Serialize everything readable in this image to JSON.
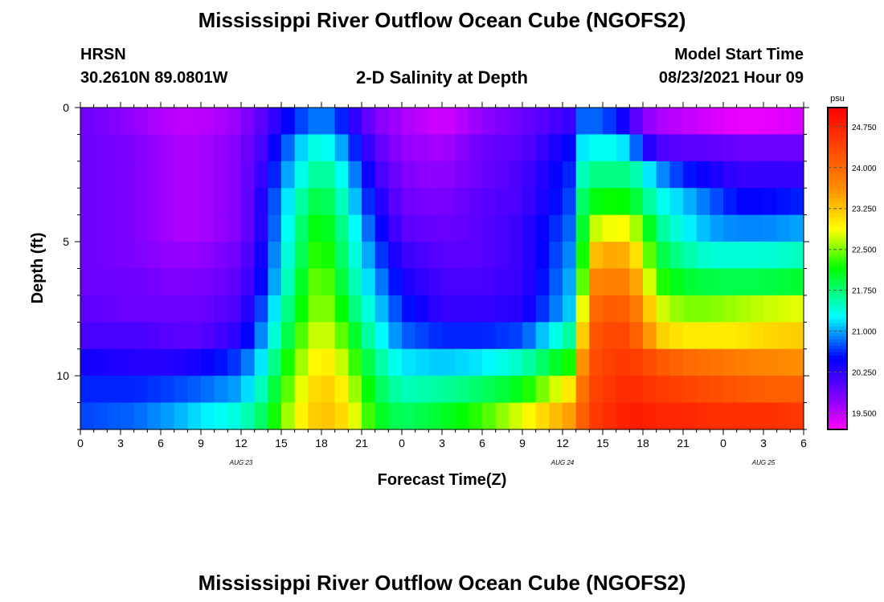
{
  "header": {
    "title": "Mississippi River Outflow Ocean Cube (NGOFS2)",
    "station": "HRSN",
    "coords": "30.2610N  89.0801W",
    "subtitle": "2-D Salinity at Depth",
    "model_label": "Model Start Time",
    "model_time": "08/23/2021 Hour 09"
  },
  "footer": {
    "title": "Mississippi River Outflow Ocean Cube (NGOFS2)"
  },
  "chart_data": {
    "type": "heatmap",
    "title": "2-D Salinity at Depth",
    "xlabel": "Forecast Time(Z)",
    "ylabel": "Depth (ft)",
    "x_ticks": [
      "0",
      "3",
      "6",
      "9",
      "12",
      "15",
      "18",
      "21",
      "0",
      "3",
      "6",
      "9",
      "12",
      "15",
      "18",
      "21",
      "0",
      "3",
      "6"
    ],
    "x_range_hours": [
      0,
      54
    ],
    "date_labels": [
      {
        "text": "AUG 23",
        "hour": 12
      },
      {
        "text": "AUG 24",
        "hour": 36
      },
      {
        "text": "AUG 25",
        "hour": 51
      }
    ],
    "y_ticks": [
      0,
      5,
      10
    ],
    "y_range_ft": [
      0,
      12
    ],
    "depth_levels_ft": [
      0,
      1,
      2,
      3,
      4,
      5,
      6,
      7,
      8,
      9,
      10,
      11
    ],
    "colorbar": {
      "unit": "psu",
      "ticks": [
        "24.750",
        "24.000",
        "23.250",
        "22.500",
        "21.750",
        "21.000",
        "20.250",
        "19.500"
      ],
      "range": [
        19.2,
        25.1
      ]
    },
    "time_keys_hours": [
      0,
      4,
      7,
      9,
      12,
      13.5,
      15.5,
      17,
      18,
      19,
      20,
      22,
      24,
      27,
      30,
      33,
      36.5,
      37.5,
      38.5,
      40,
      41,
      42,
      43,
      45,
      47,
      49,
      51,
      54
    ],
    "salinity_psu": [
      [
        19.9,
        19.7,
        19.5,
        19.5,
        19.7,
        20.0,
        20.5,
        20.8,
        20.9,
        20.8,
        20.4,
        19.8,
        19.6,
        19.4,
        19.7,
        19.9,
        20.2,
        20.8,
        20.8,
        20.6,
        20.2,
        19.8,
        19.6,
        19.5,
        19.4,
        19.3,
        19.3,
        19.4
      ],
      [
        19.9,
        19.8,
        19.6,
        19.6,
        19.8,
        20.1,
        20.8,
        21.3,
        21.4,
        21.2,
        20.8,
        20.0,
        19.7,
        19.6,
        19.9,
        20.0,
        20.5,
        21.2,
        21.3,
        21.3,
        21.1,
        20.5,
        20.1,
        20.0,
        20.0,
        19.9,
        19.9,
        19.9
      ],
      [
        19.9,
        19.8,
        19.6,
        19.6,
        19.8,
        20.2,
        21.0,
        21.5,
        21.7,
        21.5,
        21.1,
        20.2,
        19.8,
        19.7,
        19.9,
        20.1,
        20.6,
        21.5,
        21.7,
        21.7,
        21.7,
        21.4,
        21.0,
        20.6,
        20.4,
        20.2,
        20.2,
        20.2
      ],
      [
        19.9,
        19.8,
        19.6,
        19.6,
        19.8,
        20.3,
        21.2,
        21.8,
        22.0,
        21.7,
        21.3,
        20.4,
        19.9,
        19.8,
        20.0,
        20.1,
        20.7,
        21.8,
        22.1,
        22.2,
        22.1,
        21.8,
        21.4,
        21.1,
        20.8,
        20.5,
        20.5,
        20.6
      ],
      [
        19.9,
        19.8,
        19.6,
        19.6,
        19.8,
        20.3,
        21.3,
        22.0,
        22.2,
        21.9,
        21.5,
        20.6,
        20.0,
        19.9,
        20.0,
        20.2,
        20.8,
        22.0,
        22.7,
        22.9,
        22.8,
        22.4,
        21.7,
        21.3,
        21.0,
        20.9,
        20.9,
        21.0
      ],
      [
        19.9,
        19.8,
        19.7,
        19.7,
        19.9,
        20.4,
        21.4,
        22.1,
        22.4,
        22.0,
        21.6,
        20.8,
        20.2,
        20.0,
        20.0,
        20.2,
        20.9,
        22.2,
        23.3,
        23.5,
        23.3,
        22.8,
        22.0,
        21.6,
        21.4,
        21.4,
        21.4,
        21.5
      ],
      [
        19.9,
        19.9,
        19.8,
        19.8,
        20.0,
        20.5,
        21.5,
        22.3,
        22.5,
        22.2,
        21.7,
        21.0,
        20.4,
        20.1,
        20.1,
        20.2,
        21.0,
        22.4,
        23.7,
        23.8,
        23.7,
        23.2,
        22.3,
        22.0,
        21.9,
        21.9,
        21.9,
        22.0
      ],
      [
        20.0,
        19.9,
        19.9,
        19.9,
        20.1,
        20.7,
        21.7,
        22.4,
        22.6,
        22.4,
        21.9,
        21.2,
        20.6,
        20.2,
        20.2,
        20.3,
        21.1,
        22.8,
        24.0,
        24.2,
        24.0,
        23.6,
        22.8,
        22.5,
        22.5,
        22.6,
        22.7,
        22.8
      ],
      [
        20.1,
        20.1,
        20.0,
        20.0,
        20.3,
        20.9,
        21.9,
        22.6,
        22.8,
        22.6,
        22.2,
        21.4,
        20.8,
        20.6,
        20.6,
        20.7,
        21.6,
        23.2,
        24.2,
        24.4,
        24.3,
        23.9,
        23.2,
        23.0,
        23.0,
        23.0,
        23.1,
        23.2
      ],
      [
        20.4,
        20.3,
        20.3,
        20.4,
        20.7,
        21.2,
        22.2,
        22.8,
        23.0,
        22.9,
        22.5,
        21.7,
        21.2,
        21.1,
        21.2,
        21.5,
        22.2,
        23.6,
        24.3,
        24.5,
        24.5,
        24.4,
        24.2,
        24.0,
        23.9,
        23.8,
        23.7,
        23.6
      ],
      [
        20.6,
        20.6,
        20.7,
        20.8,
        21.0,
        21.5,
        22.4,
        23.0,
        23.2,
        23.1,
        22.8,
        21.9,
        21.5,
        21.6,
        21.8,
        22.1,
        23.0,
        23.9,
        24.4,
        24.6,
        24.7,
        24.6,
        24.5,
        24.4,
        24.3,
        24.2,
        24.1,
        24.1
      ],
      [
        20.7,
        20.8,
        21.0,
        21.2,
        21.4,
        21.8,
        22.6,
        23.1,
        23.3,
        23.2,
        23.0,
        22.1,
        21.8,
        22.0,
        22.3,
        22.8,
        23.5,
        24.1,
        24.5,
        24.7,
        24.8,
        24.8,
        24.7,
        24.7,
        24.6,
        24.6,
        24.6,
        24.5
      ]
    ]
  }
}
